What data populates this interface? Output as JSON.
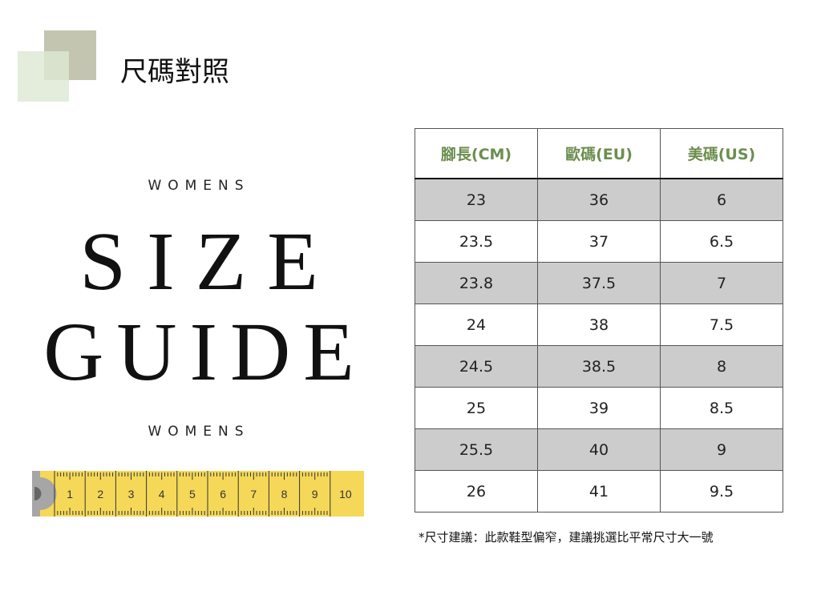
{
  "title": "尺碼對照",
  "left": {
    "label_top": "WOMENS",
    "line1": "SIZE",
    "line2": "GUIDE",
    "label_bottom": "WOMENS",
    "tape_numbers": [
      "1",
      "2",
      "3",
      "4",
      "5",
      "6",
      "7",
      "8",
      "9",
      "10"
    ]
  },
  "table": {
    "headers": [
      "腳長(CM)",
      "歐碼(EU)",
      "美碼(US)"
    ],
    "rows": [
      [
        "23",
        "36",
        "6"
      ],
      [
        "23.5",
        "37",
        "6.5"
      ],
      [
        "23.8",
        "37.5",
        "7"
      ],
      [
        "24",
        "38",
        "7.5"
      ],
      [
        "24.5",
        "38.5",
        "8"
      ],
      [
        "25",
        "39",
        "8.5"
      ],
      [
        "25.5",
        "40",
        "9"
      ],
      [
        "26",
        "41",
        "9.5"
      ]
    ]
  },
  "note": "*尺寸建議：此款鞋型偏窄，建議挑選比平常尺寸大一號",
  "colors": {
    "header": "#6b8e4e",
    "shade": "#cccccc",
    "tape": "#f5d858"
  }
}
